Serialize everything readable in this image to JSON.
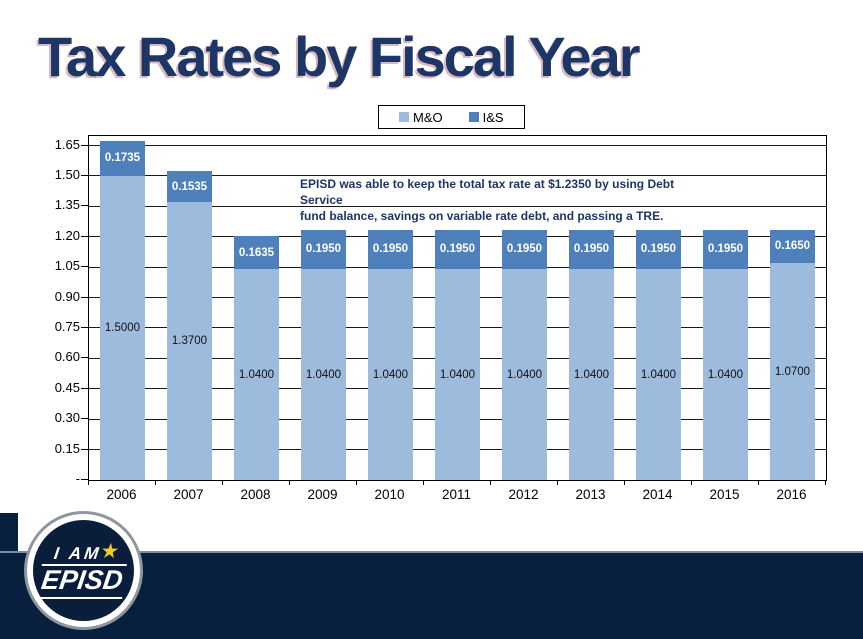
{
  "slide": {
    "title": "Tax Rates by Fiscal Year"
  },
  "annotation": {
    "line1": "EPISD was able to keep the total tax rate at $1.2350 by using Debt Service",
    "line2": "fund balance, savings on variable rate debt, and passing a TRE."
  },
  "logo": {
    "line1": "I AM",
    "star": "★",
    "line2": "EPISD"
  },
  "colors": {
    "title_navy": "#1c3668",
    "footer_navy": "#081f3e",
    "mo_blue": "#9dbbdd",
    "is_blue": "#4e81bb"
  },
  "chart_data": {
    "type": "bar",
    "stacked": true,
    "title": "Tax Rates by Fiscal Year",
    "xlabel": "",
    "ylabel": "",
    "legend_position": "top",
    "grid": true,
    "categories": [
      "2006",
      "2007",
      "2008",
      "2009",
      "2010",
      "2011",
      "2012",
      "2013",
      "2014",
      "2015",
      "2016"
    ],
    "series": [
      {
        "name": "M&O",
        "color": "#9dbbdd",
        "values": [
          1.5,
          1.37,
          1.04,
          1.04,
          1.04,
          1.04,
          1.04,
          1.04,
          1.04,
          1.04,
          1.07
        ],
        "labels": [
          "1.5000",
          "1.3700",
          "1.0400",
          "1.0400",
          "1.0400",
          "1.0400",
          "1.0400",
          "1.0400",
          "1.0400",
          "1.0400",
          "1.0700"
        ]
      },
      {
        "name": "I&S",
        "color": "#4e81bb",
        "values": [
          0.1735,
          0.1535,
          0.1635,
          0.195,
          0.195,
          0.195,
          0.195,
          0.195,
          0.195,
          0.195,
          0.165
        ],
        "labels": [
          "0.1735",
          "0.1535",
          "0.1635",
          "0.1950",
          "0.1950",
          "0.1950",
          "0.1950",
          "0.1950",
          "0.1950",
          "0.1950",
          "0.1650"
        ]
      }
    ],
    "ylim": [
      0,
      1.697
    ],
    "y_ticks": [
      {
        "label": "1.65",
        "value": 1.65
      },
      {
        "label": "1.50",
        "value": 1.5
      },
      {
        "label": "1.35",
        "value": 1.35
      },
      {
        "label": "1.20",
        "value": 1.2
      },
      {
        "label": "1.05",
        "value": 1.05
      },
      {
        "label": "0.90",
        "value": 0.9
      },
      {
        "label": "0.75",
        "value": 0.75
      },
      {
        "label": "0.60",
        "value": 0.6
      },
      {
        "label": "0.45",
        "value": 0.45
      },
      {
        "label": "0.30",
        "value": 0.3
      },
      {
        "label": "0.15",
        "value": 0.15
      },
      {
        "label": "-",
        "value": 0
      }
    ]
  }
}
